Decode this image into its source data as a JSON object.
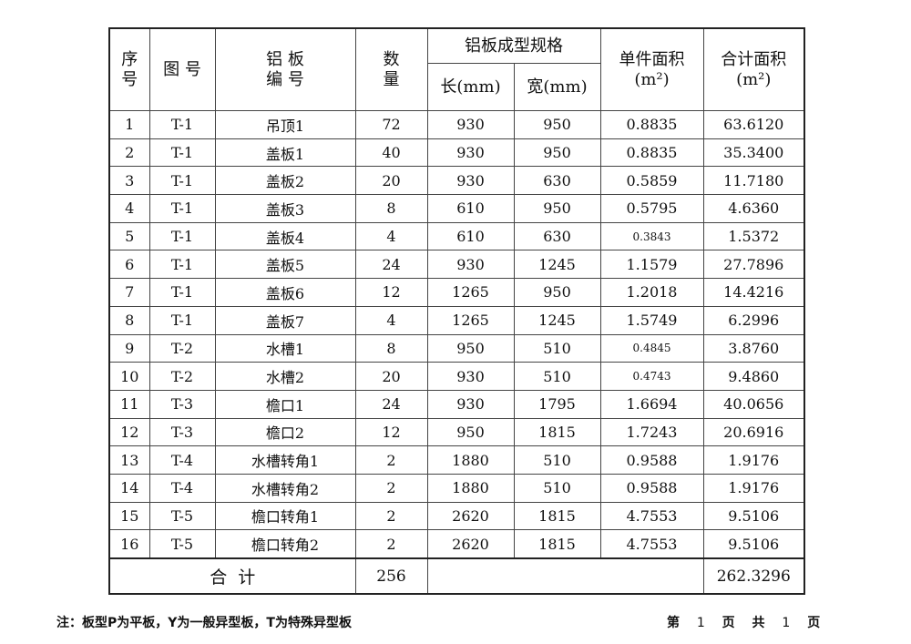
{
  "headers": {
    "seq": "序\n号",
    "drawing": "图 号",
    "panel": "铝 板\n编 号",
    "qty": "数\n量",
    "spec": "铝板成型规格",
    "length": "长(mm)",
    "width": "宽(mm)",
    "unit_area": "单件面积\n(m²)",
    "total_area": "合计面积\n(m²)"
  },
  "rows": [
    [
      "1",
      "T-1",
      "吊顶1",
      "72",
      "930",
      "950",
      "0.8835",
      "63.6120"
    ],
    [
      "2",
      "T-1",
      "盖板1",
      "40",
      "930",
      "950",
      "0.8835",
      "35.3400"
    ],
    [
      "3",
      "T-1",
      "盖板2",
      "20",
      "930",
      "630",
      "0.5859",
      "11.7180"
    ],
    [
      "4",
      "T-1",
      "盖板3",
      "8",
      "610",
      "950",
      "0.5795",
      "4.6360"
    ],
    [
      "5",
      "T-1",
      "盖板4",
      "4",
      "610",
      "630",
      "0.3843",
      "1.5372"
    ],
    [
      "6",
      "T-1",
      "盖板5",
      "24",
      "930",
      "1245",
      "1.1579",
      "27.7896"
    ],
    [
      "7",
      "T-1",
      "盖板6",
      "12",
      "1265",
      "950",
      "1.2018",
      "14.4216"
    ],
    [
      "8",
      "T-1",
      "盖板7",
      "4",
      "1265",
      "1245",
      "1.5749",
      "6.2996"
    ],
    [
      "9",
      "T-2",
      "水槽1",
      "8",
      "950",
      "510",
      "0.4845",
      "3.8760"
    ],
    [
      "10",
      "T-2",
      "水槽2",
      "20",
      "930",
      "510",
      "0.4743",
      "9.4860"
    ],
    [
      "11",
      "T-3",
      "檐口1",
      "24",
      "930",
      "1795",
      "1.6694",
      "40.0656"
    ],
    [
      "12",
      "T-3",
      "檐口2",
      "12",
      "950",
      "1815",
      "1.7243",
      "20.6916"
    ],
    [
      "13",
      "T-4",
      "水槽转角1",
      "2",
      "1880",
      "510",
      "0.9588",
      "1.9176"
    ],
    [
      "14",
      "T-4",
      "水槽转角2",
      "2",
      "1880",
      "510",
      "0.9588",
      "1.9176"
    ],
    [
      "15",
      "T-5",
      "檐口转角1",
      "2",
      "2620",
      "1815",
      "4.7553",
      "9.5106"
    ],
    [
      "16",
      "T-5",
      "檐口转角2",
      "2",
      "2620",
      "1815",
      "4.7553",
      "9.5106"
    ]
  ],
  "total": {
    "label": "合  计",
    "qty": "256",
    "area": "262.3296"
  },
  "footer": {
    "note": "注：板型P为平板，Y为一般异型板，T为特殊异型板",
    "page_prefix": "第",
    "page": "1",
    "page_mid": "页 共",
    "pages": "1",
    "page_suffix": "页"
  }
}
